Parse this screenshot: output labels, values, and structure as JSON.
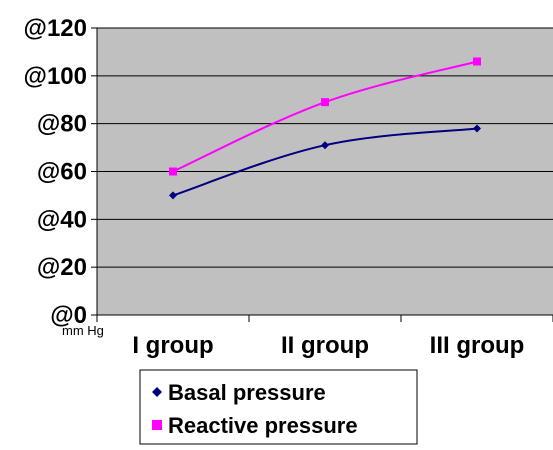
{
  "chart_data": {
    "type": "line",
    "categories": [
      "I group",
      "II group",
      "III group"
    ],
    "series": [
      {
        "name": "Basal pressure",
        "values": [
          50,
          71,
          78
        ],
        "color": "#000080",
        "marker": "diamond"
      },
      {
        "name": "Reactive pressure",
        "values": [
          60,
          89,
          106
        ],
        "color": "#ff00ff",
        "marker": "square"
      }
    ],
    "y_tick_labels": [
      "@0",
      "@20",
      "@40",
      "@60",
      "@80",
      "@100",
      "@120"
    ],
    "y_ticks": [
      0,
      20,
      40,
      60,
      80,
      100,
      120
    ],
    "ylim": [
      0,
      120
    ],
    "unit_label": "mm Hg",
    "grid": true,
    "plot_background": "#c0c0c0",
    "legend_position": "bottom"
  }
}
